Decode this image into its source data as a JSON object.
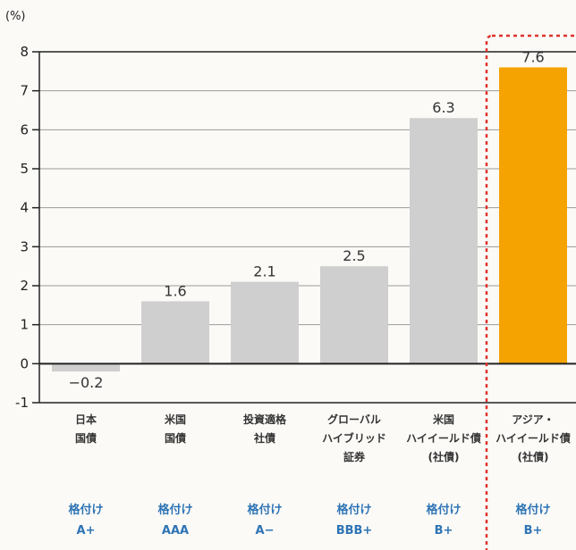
{
  "chart_data": {
    "type": "bar",
    "unit_label": "(%)",
    "categories": [
      [
        "日本",
        "国債"
      ],
      [
        "米国",
        "国債"
      ],
      [
        "投資適格",
        "社債"
      ],
      [
        "グローバル",
        "ハイブリッド",
        "証券"
      ],
      [
        "米国",
        "ハイイールド債",
        "(社債)"
      ],
      [
        "アジア・",
        "ハイイールド債",
        "(社債)"
      ]
    ],
    "values": [
      -0.2,
      1.6,
      2.1,
      2.5,
      6.3,
      7.6
    ],
    "value_labels": [
      "−0.2",
      "1.6",
      "2.1",
      "2.5",
      "6.3",
      "7.6"
    ],
    "ratings": [
      [
        "格付け",
        "A+"
      ],
      [
        "格付け",
        "AAA"
      ],
      [
        "格付け",
        "A−"
      ],
      [
        "格付け",
        "BBB+"
      ],
      [
        "格付け",
        "B+"
      ],
      [
        "格付け",
        "B+"
      ]
    ],
    "y_ticks": [
      "-1",
      "0",
      "1",
      "2",
      "3",
      "4",
      "5",
      "6",
      "7",
      "8"
    ],
    "ylim": [
      -1,
      8
    ],
    "grid": true,
    "highlight_index": 5,
    "colors": {
      "bar": "#cfcfcf",
      "highlight_bar": "#f5a300",
      "highlight_box": "#e0302a",
      "rating_text": "#2e74b5",
      "grid": "#9a9a9a",
      "axis": "#222222"
    }
  }
}
